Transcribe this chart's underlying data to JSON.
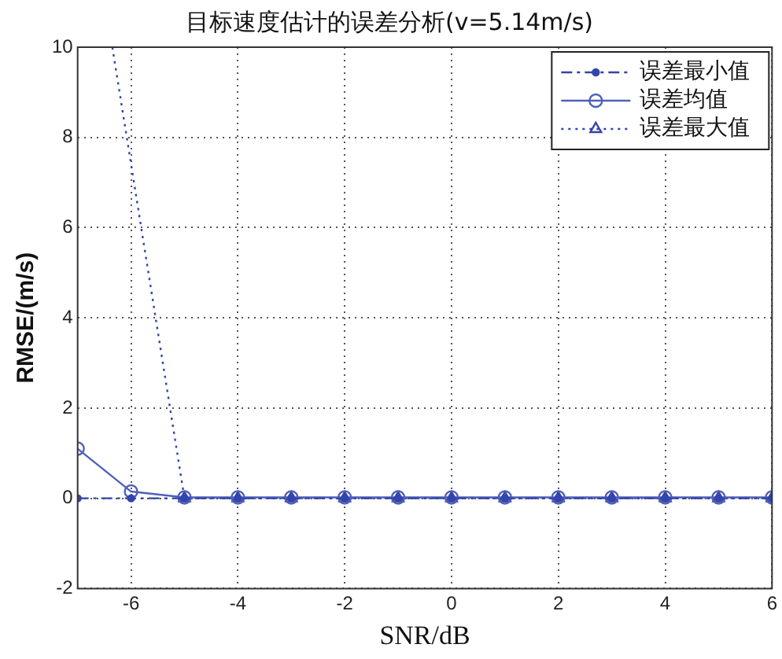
{
  "chart_data": {
    "type": "line",
    "title": "目标速度估计的误差分析(v=5.14m/s)",
    "xlabel": "SNR/dB",
    "ylabel": "RMSE/(m/s)",
    "x": [
      -7,
      -6,
      -5,
      -4,
      -3,
      -2,
      -1,
      0,
      1,
      2,
      3,
      4,
      5,
      6
    ],
    "xlim": [
      -7,
      6
    ],
    "xticks": [
      -6,
      -4,
      -2,
      0,
      2,
      4,
      6
    ],
    "ylim": [
      -2,
      10
    ],
    "yticks": [
      -2,
      0,
      2,
      4,
      6,
      8,
      10
    ],
    "grid": true,
    "legend": "top right",
    "series": [
      {
        "name": "误差最小值",
        "color": "#3344aa",
        "marker": "circle",
        "line_style": "dashdot",
        "values": [
          0,
          0,
          0,
          0,
          0,
          0,
          0,
          0,
          0,
          0,
          0,
          0,
          0,
          0
        ]
      },
      {
        "name": "误差均值",
        "color": "#5060b8",
        "marker": "circle",
        "line_style": "solid",
        "values": [
          1.1,
          0.15,
          0.02,
          0.02,
          0.02,
          0.02,
          0.02,
          0.02,
          0.02,
          0.02,
          0.02,
          0.02,
          0.02,
          0.02
        ]
      },
      {
        "name": "误差最大值",
        "color": "#3344aa",
        "marker": "triangle",
        "line_style": "dotted",
        "x": [
          -6.35,
          -5,
          -4,
          -3,
          -2,
          -1,
          0,
          1,
          2,
          3,
          4,
          5,
          6
        ],
        "values": [
          10,
          0,
          0,
          0,
          0,
          0,
          0,
          0,
          0,
          0,
          0,
          0,
          0
        ]
      }
    ]
  }
}
